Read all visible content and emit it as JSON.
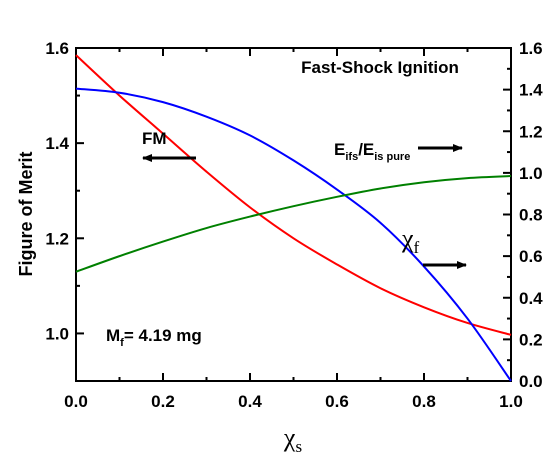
{
  "chart_data": {
    "type": "line",
    "title": "",
    "xlabel": {
      "base": "χ",
      "sub": "s"
    },
    "ylabel": "Figure of Merit",
    "xlim": [
      0.0,
      1.0
    ],
    "ylim_left": [
      0.9,
      1.6
    ],
    "ylim_right": [
      0.0,
      1.6
    ],
    "x_ticks": [
      "0.0",
      "0.2",
      "0.4",
      "0.6",
      "0.8",
      "1.0"
    ],
    "y_left_ticks": [
      "1.0",
      "1.2",
      "1.4",
      "1.6"
    ],
    "y_right_ticks": [
      "0.0",
      "0.2",
      "0.4",
      "0.6",
      "0.8",
      "1.0",
      "1.2",
      "1.4",
      "1.6"
    ],
    "grid": false,
    "series": [
      {
        "color": "#ff0000",
        "axis": "left",
        "x": [
          0.0,
          0.1,
          0.2,
          0.3,
          0.4,
          0.5,
          0.6,
          0.7,
          0.8,
          0.9,
          1.0
        ],
        "y": [
          1.585,
          1.5,
          1.42,
          1.34,
          1.265,
          1.2,
          1.145,
          1.095,
          1.055,
          1.022,
          0.997
        ]
      },
      {
        "color": "#0000ff",
        "axis": "right",
        "x": [
          0.0,
          0.1,
          0.2,
          0.3,
          0.4,
          0.5,
          0.6,
          0.7,
          0.8,
          0.9,
          1.0
        ],
        "y": [
          1.405,
          1.385,
          1.34,
          1.27,
          1.18,
          1.06,
          0.92,
          0.76,
          0.55,
          0.3,
          0.0
        ]
      },
      {
        "color": "#008000",
        "axis": "right",
        "x": [
          0.0,
          0.1,
          0.2,
          0.3,
          0.4,
          0.5,
          0.6,
          0.7,
          0.8,
          0.9,
          1.0
        ],
        "y": [
          0.525,
          0.6,
          0.67,
          0.735,
          0.79,
          0.84,
          0.885,
          0.925,
          0.955,
          0.975,
          0.985
        ]
      }
    ],
    "annotations": {
      "title_text": "Fast-Shock Ignition",
      "fm": "FM",
      "chi_f": {
        "base": "χ",
        "sub": "f"
      },
      "ratio": {
        "E1": "E",
        "s1": "ifs",
        "slash": "/E",
        "s2": "is pure"
      },
      "mass": {
        "M": "M",
        "sub": "f",
        "rest": "= 4.19 mg"
      }
    }
  }
}
